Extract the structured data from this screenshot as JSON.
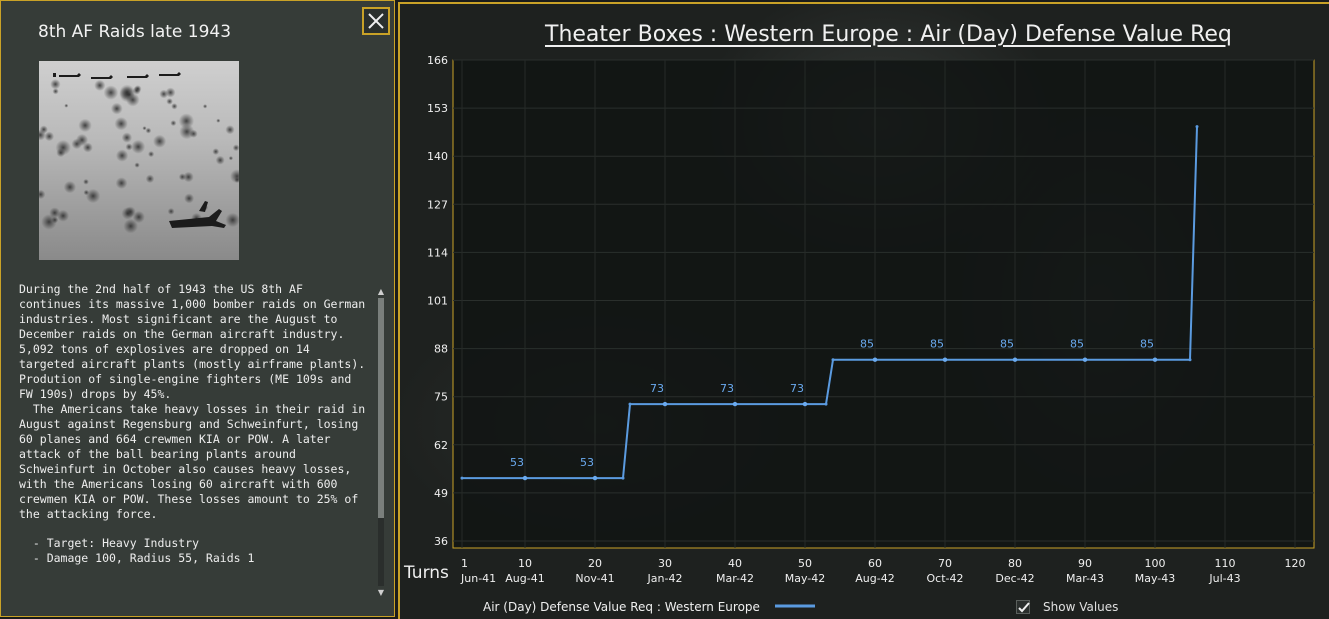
{
  "event": {
    "title": "8th AF Raids late 1943",
    "close_icon": "close-icon",
    "image_icon": "bomber-formation-photo",
    "paragraph1": "During the 2nd half of 1943 the US 8th AF continues its massive 1,000 bomber raids on German industries. Most significant are the August to December raids on the German aircraft industry. 5,092 tons of explosives are dropped on 14 targeted aircraft plants (mostly airframe plants). Prodution of single-engine fighters (ME 109s and FW 190s) drops by 45%.",
    "paragraph2": "  The Americans take heavy losses in their raid in August against Regensburg and Schweinfurt, losing 60 planes and 664 crewmen KIA or POW. A later attack of the ball bearing plants around Schweinfurt in October also causes heavy losses, with the Americans losing 60 aircraft with 600 crewmen KIA or POW. These losses amount to 25% of the attacking force.",
    "details": [
      "  - Target: Heavy Industry",
      "  - Damage 100, Radius 55, Raids 1"
    ]
  },
  "show_values": {
    "label": "Show Values",
    "checked": true
  },
  "colors": {
    "accent": "#c9a227",
    "series": "#5b9be0",
    "label": "#6aaaf0"
  },
  "chart_data": {
    "type": "line",
    "title": "Theater Boxes : Western Europe : Air (Day) Defense Value Req",
    "xlabel": "Turns",
    "ylabel": "",
    "xlim": [
      1,
      120
    ],
    "ylim": [
      36,
      166
    ],
    "yticks": [
      "36",
      "49",
      "62",
      "75",
      "88",
      "101",
      "114",
      "127",
      "140",
      "153",
      "166"
    ],
    "xticks": [
      {
        "turn": "1",
        "date": "Jun-41"
      },
      {
        "turn": "10",
        "date": "Aug-41"
      },
      {
        "turn": "20",
        "date": "Nov-41"
      },
      {
        "turn": "30",
        "date": "Jan-42"
      },
      {
        "turn": "40",
        "date": "Mar-42"
      },
      {
        "turn": "50",
        "date": "May-42"
      },
      {
        "turn": "60",
        "date": "Aug-42"
      },
      {
        "turn": "70",
        "date": "Oct-42"
      },
      {
        "turn": "80",
        "date": "Dec-42"
      },
      {
        "turn": "90",
        "date": "Mar-43"
      },
      {
        "turn": "100",
        "date": "May-43"
      },
      {
        "turn": "110",
        "date": "Jul-43"
      },
      {
        "turn": "120",
        "date": ""
      }
    ],
    "grid": true,
    "legend": "bottom-left",
    "series": [
      {
        "name": "Air (Day) Defense Value Req : Western Europe",
        "x": [
          1,
          24,
          25,
          53,
          54,
          105,
          106
        ],
        "y": [
          53,
          53,
          73,
          73,
          85,
          85,
          148
        ]
      }
    ],
    "markers": [
      {
        "x": 10,
        "y": 53,
        "label": "53"
      },
      {
        "x": 20,
        "y": 53,
        "label": "53"
      },
      {
        "x": 30,
        "y": 73,
        "label": "73"
      },
      {
        "x": 40,
        "y": 73,
        "label": "73"
      },
      {
        "x": 50,
        "y": 73,
        "label": "73"
      },
      {
        "x": 60,
        "y": 85,
        "label": "85"
      },
      {
        "x": 70,
        "y": 85,
        "label": "85"
      },
      {
        "x": 80,
        "y": 85,
        "label": "85"
      },
      {
        "x": 90,
        "y": 85,
        "label": "85"
      },
      {
        "x": 100,
        "y": 85,
        "label": "85"
      }
    ]
  }
}
